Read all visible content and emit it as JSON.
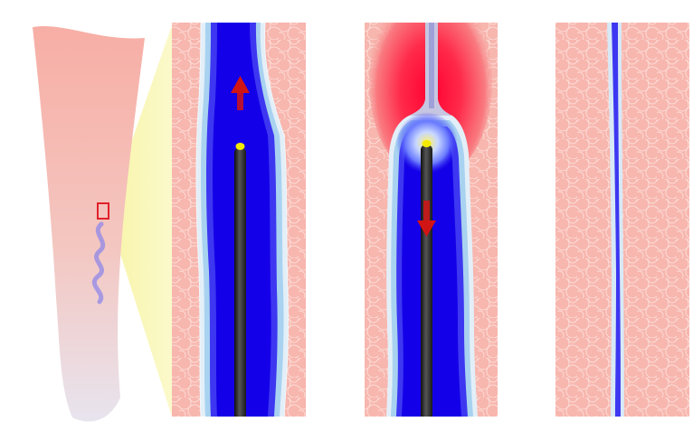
{
  "figure": {
    "panels": [
      {
        "id": "leg",
        "description_visible": false
      },
      {
        "id": "vein-catheter-inserted",
        "arrow": "up"
      },
      {
        "id": "vein-heating-retracting",
        "arrow": "down"
      },
      {
        "id": "vein-closed"
      }
    ],
    "colors": {
      "tissue": "#f7b5ad",
      "tissue_cell": "#fbd6d0",
      "vein_blue": "#1400e8",
      "vein_lumen_edge": "#3f38f2",
      "vein_wall": "#b9dcf2",
      "vein_wall_outline": "#e0eef7",
      "catheter": "#2a2a2a",
      "catheter_tip": "#f2ea00",
      "arrow": "#d11414",
      "heat": "#ff1040",
      "skin_top": "#f7b0a8",
      "skin_bottom": "#e6e3ec",
      "zoom_cone": "#f9f7b8",
      "marker_box": "#e0202a",
      "leg_vein": "#8f87e8"
    },
    "icons": [
      "up-arrow-icon",
      "down-arrow-icon",
      "catheter-tip-icon"
    ]
  }
}
